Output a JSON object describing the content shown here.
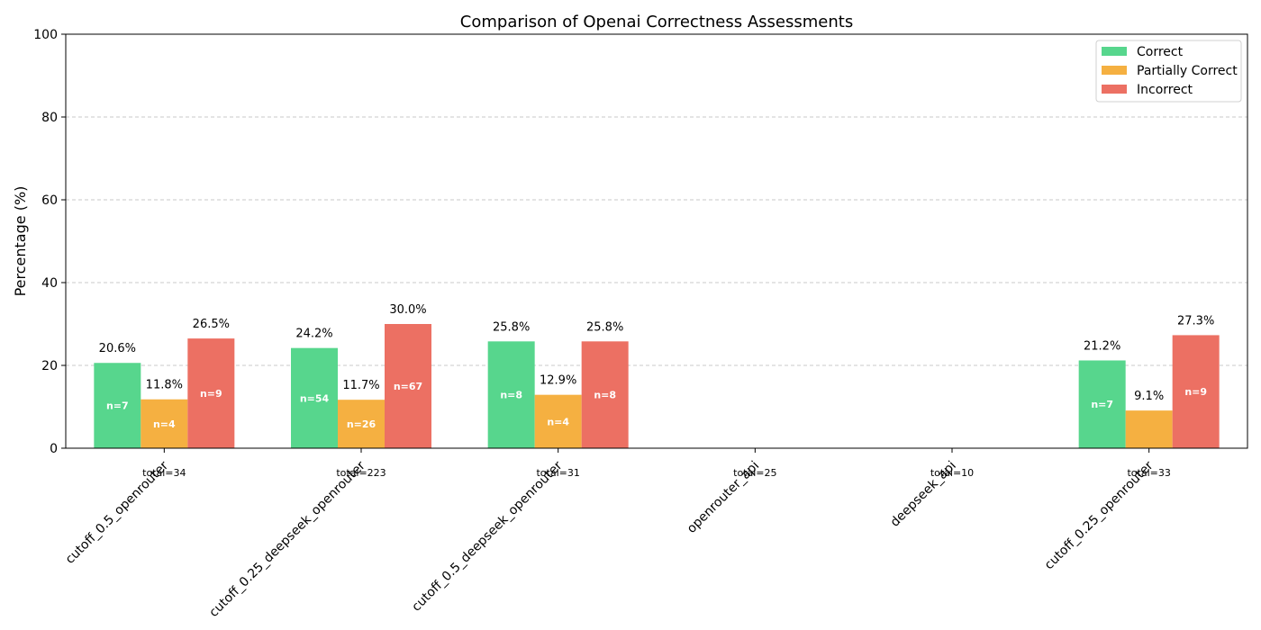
{
  "chart_data": {
    "type": "bar",
    "title": "Comparison of Openai Correctness Assessments",
    "xlabel": "",
    "ylabel": "Percentage (%)",
    "ylim": [
      0,
      100
    ],
    "yticks": [
      "0",
      "20",
      "40",
      "60",
      "80",
      "100"
    ],
    "grid": "y-dashed",
    "legend_position": "top-right",
    "categories": [
      "cutoff_0.5_openrouter",
      "cutoff_0.25_deepseek_openrouter",
      "cutoff_0.5_deepseek_openrouter",
      "openrouter_api",
      "deepseek_api",
      "cutoff_0.25_openrouter"
    ],
    "totals": [
      "total=34",
      "total=223",
      "total=31",
      "total=25",
      "total=10",
      "total=33"
    ],
    "series": [
      {
        "name": "Correct",
        "color": "#57d68d",
        "values": [
          20.6,
          24.2,
          25.8,
          0,
          0,
          21.2
        ],
        "value_labels": [
          "20.6%",
          "24.2%",
          "25.8%",
          "",
          "",
          "21.2%"
        ],
        "count_labels": [
          "n=7",
          "n=54",
          "n=8",
          "",
          "",
          "n=7"
        ]
      },
      {
        "name": "Partially Correct",
        "color": "#f5b041",
        "values": [
          11.8,
          11.7,
          12.9,
          0,
          0,
          9.1
        ],
        "value_labels": [
          "11.8%",
          "11.7%",
          "12.9%",
          "",
          "",
          "9.1%"
        ],
        "count_labels": [
          "n=4",
          "n=26",
          "n=4",
          "",
          "",
          ""
        ]
      },
      {
        "name": "Incorrect",
        "color": "#ec7063",
        "values": [
          26.5,
          30.0,
          25.8,
          0,
          0,
          27.3
        ],
        "value_labels": [
          "26.5%",
          "30.0%",
          "25.8%",
          "",
          "",
          "27.3%"
        ],
        "count_labels": [
          "n=9",
          "n=67",
          "n=8",
          "",
          "",
          "n=9"
        ]
      }
    ]
  }
}
